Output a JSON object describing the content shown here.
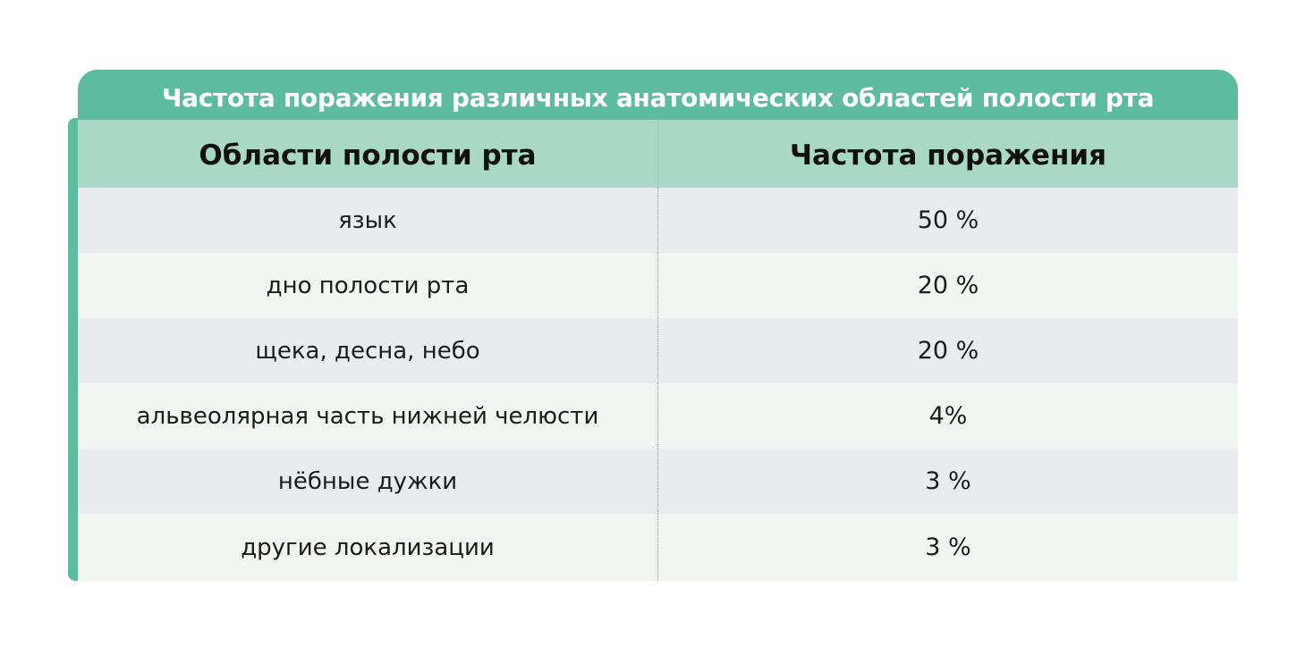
{
  "title": "Частота поражения различных анатомических областей полости рта",
  "columns": [
    "Области полости рта",
    "Частота поражения"
  ],
  "rows": [
    {
      "area": "язык",
      "frequency": "50 %"
    },
    {
      "area": "дно полости рта",
      "frequency": "20 %"
    },
    {
      "area": "щека, десна, небо",
      "frequency": "20 %"
    },
    {
      "area": "альвеолярная часть нижней челюсти",
      "frequency": "4%"
    },
    {
      "area": "нёбные дужки",
      "frequency": "3 %"
    },
    {
      "area": "другие локализации",
      "frequency": "3 %"
    }
  ],
  "colors": {
    "accent": "#5dbb9e",
    "header_bg": "#a9d8c6",
    "row_shade_a": "#e9ebef",
    "row_shade_b": "#f1f6f3"
  }
}
